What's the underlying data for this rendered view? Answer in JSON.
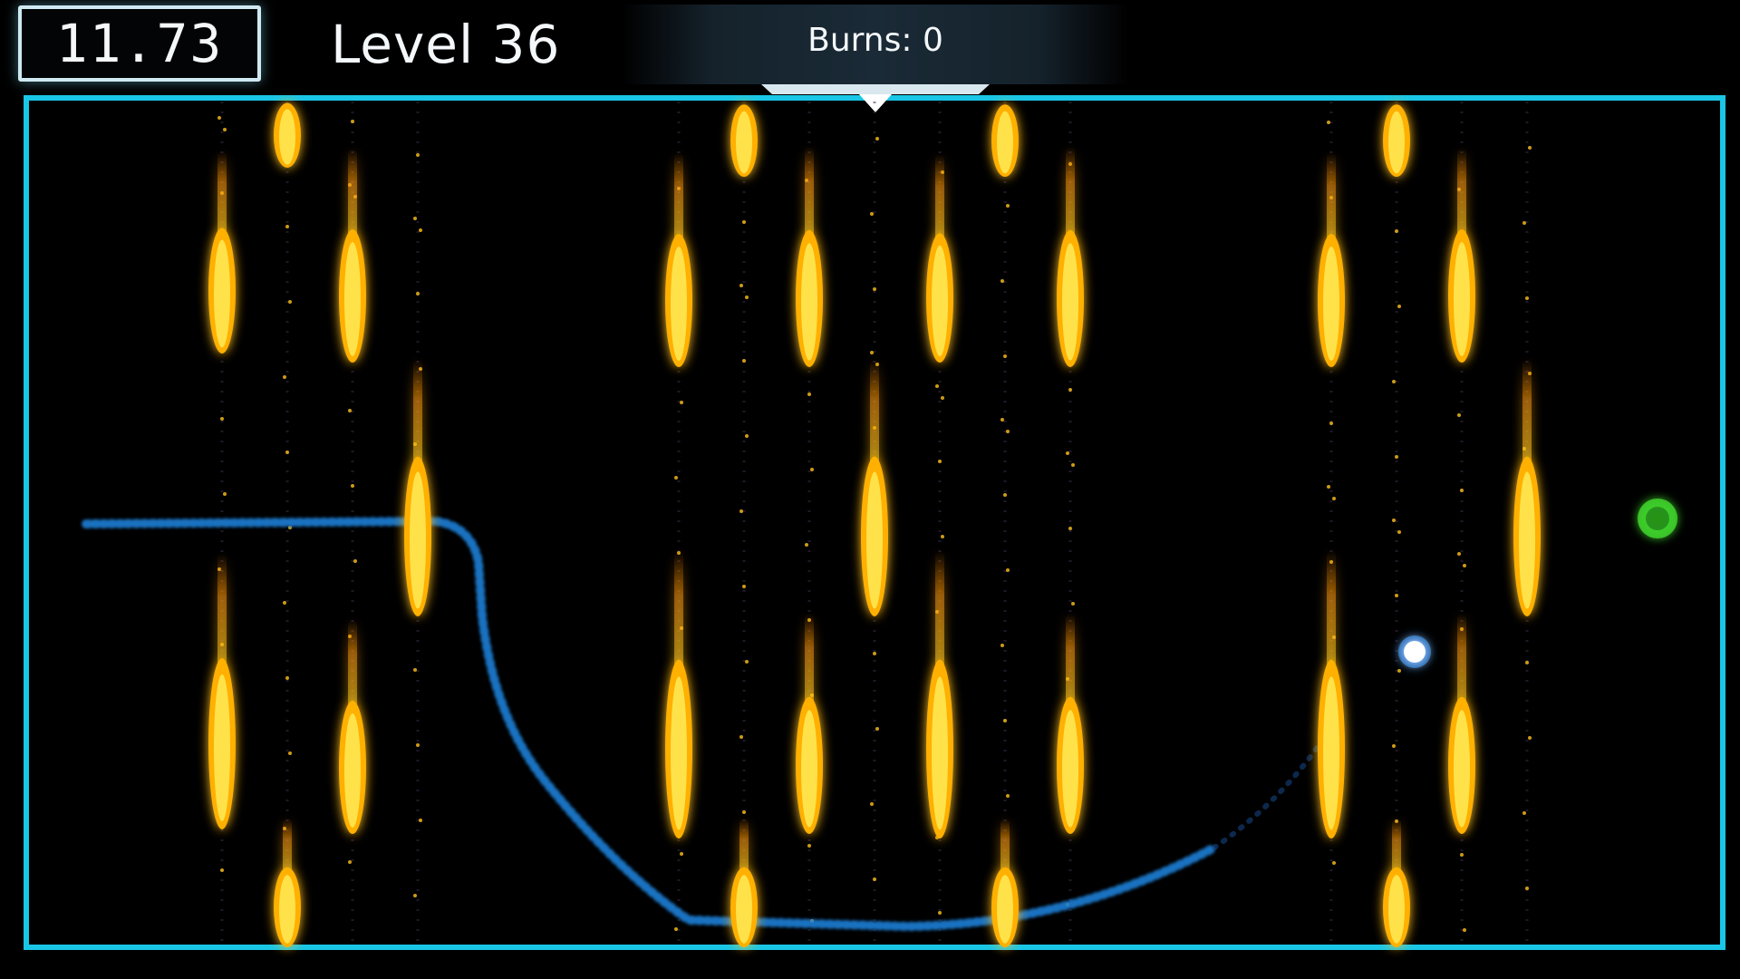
{
  "hud": {
    "timer": "11.73",
    "level": "Level 36",
    "burns": "Burns: 0"
  },
  "colors": {
    "arena_border": "#19c6e6",
    "flame_core": "#ffd21a",
    "flame_edge": "#ff7a00",
    "trail": "#1e7fd6",
    "player": "#ffffff",
    "goal": "#3fd42a"
  },
  "icons": {
    "player": "glowing-orb-icon",
    "goal": "green-goal-orb-icon",
    "flame": "fire-jet-icon"
  }
}
